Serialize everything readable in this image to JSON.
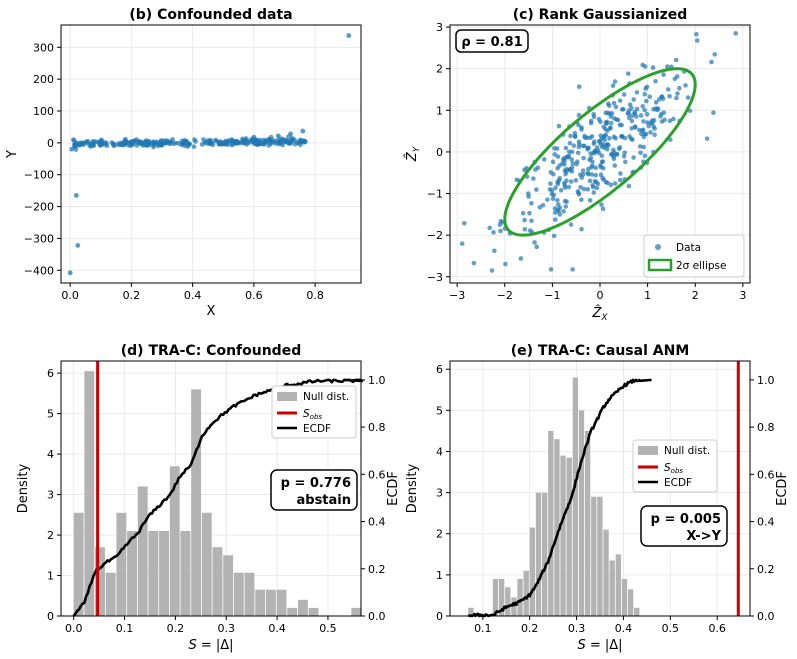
{
  "chart_data": [
    {
      "id": "b",
      "type": "scatter",
      "title": "(b) Confounded data",
      "xlabel": "X",
      "ylabel": "Y",
      "xlim": [
        -0.03,
        0.95
      ],
      "ylim": [
        -440,
        370
      ],
      "xticks": [
        0.0,
        0.2,
        0.4,
        0.6,
        0.8
      ],
      "xtick_labels": [
        "0.0",
        "0.2",
        "0.4",
        "0.6",
        "0.8"
      ],
      "yticks": [
        -400,
        -300,
        -200,
        -100,
        0,
        100,
        200,
        300
      ],
      "ytick_labels": [
        "−400",
        "−300",
        "−200",
        "−100",
        "0",
        "100",
        "200",
        "300"
      ],
      "color": "#1f77b4",
      "outliers": [
        [
          0.0,
          -408
        ],
        [
          0.02,
          -165
        ],
        [
          0.025,
          -322
        ],
        [
          0.005,
          -20
        ],
        [
          0.015,
          -8
        ],
        [
          0.91,
          337
        ],
        [
          0.76,
          37
        ],
        [
          0.72,
          28
        ],
        [
          0.68,
          22
        ],
        [
          0.6,
          18
        ],
        [
          0.65,
          10
        ]
      ],
      "bulk": {
        "x_range": [
          0.01,
          0.77
        ],
        "y_slope": 12,
        "y_noise": 5,
        "n": 300
      }
    },
    {
      "id": "c",
      "type": "scatter",
      "title": "(c) Rank Gaussianized",
      "xlabel": "Ẑ_X",
      "ylabel": "Ẑ_Y",
      "xlim": [
        -3.15,
        3.15
      ],
      "ylim": [
        -3.15,
        3.05
      ],
      "xticks": [
        -3,
        -2,
        -1,
        0,
        1,
        2,
        3
      ],
      "xtick_labels": [
        "−3",
        "−2",
        "−1",
        "0",
        "1",
        "2",
        "3"
      ],
      "yticks": [
        -3,
        -2,
        -1,
        0,
        1,
        2,
        3
      ],
      "ytick_labels": [
        "−3",
        "−2",
        "−1",
        "0",
        "1",
        "2",
        "3"
      ],
      "annotation": "ρ = 0.81",
      "rho": 0.81,
      "n": 380,
      "point_color": "#1f77b4",
      "ellipse_color": "#2ca02c",
      "legend": [
        "Data",
        "2σ ellipse"
      ]
    },
    {
      "id": "d",
      "type": "bar",
      "title": "(d) TRA-C: Confounded",
      "xlabel": "S = |Δ|",
      "ylabel": "Density",
      "y2label": "ECDF",
      "xlim": [
        -0.025,
        0.565
      ],
      "ylim": [
        0,
        6.3
      ],
      "y2lim": [
        0,
        1.08
      ],
      "xticks": [
        0.0,
        0.1,
        0.2,
        0.3,
        0.4,
        0.5
      ],
      "xtick_labels": [
        "0.0",
        "0.1",
        "0.2",
        "0.3",
        "0.4",
        "0.5"
      ],
      "yticks": [
        0,
        1,
        2,
        3,
        4,
        5,
        6
      ],
      "ytick_labels": [
        "0",
        "1",
        "2",
        "3",
        "4",
        "5",
        "6"
      ],
      "y2ticks": [
        0.0,
        0.2,
        0.4,
        0.6,
        0.8,
        1.0
      ],
      "y2tick_labels": [
        "0.0",
        "0.2",
        "0.4",
        "0.6",
        "0.8",
        "1.0"
      ],
      "bin_start": 0.0,
      "bin_width": 0.021,
      "density": [
        2.55,
        6.05,
        1.7,
        1.07,
        2.55,
        2.1,
        3.2,
        2.1,
        2.1,
        3.7,
        2.1,
        5.6,
        2.55,
        1.7,
        1.5,
        1.07,
        1.07,
        0.65,
        0.65,
        0.65,
        0.2,
        0.4,
        0.2,
        0.0,
        0.0,
        0.0,
        0.2
      ],
      "s_obs": 0.047,
      "ecdf_end": 0.53,
      "annotation": [
        "p = 0.776",
        "abstain"
      ],
      "legend": [
        "Null dist.",
        "S_obs",
        "ECDF"
      ],
      "bar_color": "#b3b3b3",
      "sobs_color": "#cc0000"
    },
    {
      "id": "e",
      "type": "bar",
      "title": "(e) TRA-C: Causal ANM",
      "xlabel": "S = |Δ|",
      "ylabel": "Density",
      "y2label": "ECDF",
      "xlim": [
        0.03,
        0.67
      ],
      "ylim": [
        0,
        6.2
      ],
      "y2lim": [
        0,
        1.08
      ],
      "xticks": [
        0.1,
        0.2,
        0.3,
        0.4,
        0.5,
        0.6
      ],
      "xtick_labels": [
        "0.1",
        "0.2",
        "0.3",
        "0.4",
        "0.5",
        "0.6"
      ],
      "yticks": [
        0,
        1,
        2,
        3,
        4,
        5,
        6
      ],
      "ytick_labels": [
        "0",
        "1",
        "2",
        "3",
        "4",
        "5",
        "6"
      ],
      "y2ticks": [
        0.0,
        0.2,
        0.4,
        0.6,
        0.8,
        1.0
      ],
      "y2tick_labels": [
        "0.0",
        "0.2",
        "0.4",
        "0.6",
        "0.8",
        "1.0"
      ],
      "bin_start": 0.069,
      "bin_width": 0.0131,
      "density": [
        0.2,
        0.0,
        0.0,
        0.0,
        0.9,
        0.9,
        0.7,
        0.45,
        0.9,
        1.1,
        2.15,
        3.0,
        3.0,
        4.5,
        4.3,
        3.9,
        3.85,
        5.8,
        5.0,
        4.5,
        2.9,
        2.9,
        2.1,
        1.35,
        1.5,
        0.9,
        0.65,
        0.2
      ],
      "s_obs": 0.645,
      "ecdf_end": 0.46,
      "annotation": [
        "p = 0.005",
        "X->Y"
      ],
      "legend": [
        "Null dist.",
        "S_obs",
        "ECDF"
      ],
      "bar_color": "#b3b3b3",
      "sobs_color": "#cc0000"
    }
  ]
}
